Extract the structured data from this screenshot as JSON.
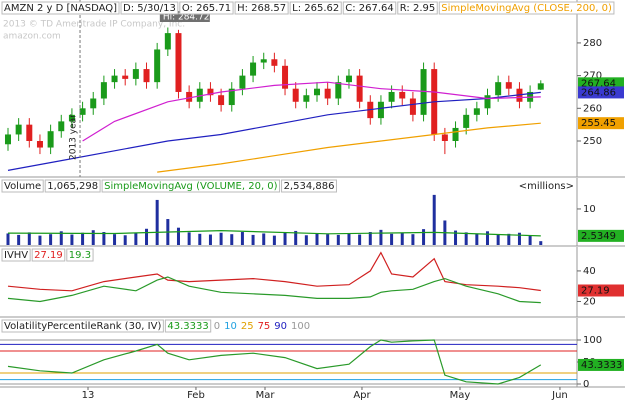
{
  "chart_data": [
    {
      "type": "candlestick",
      "header": [
        {
          "text": "AMZN 2 y D [NASDAQ]",
          "color": "#222"
        },
        {
          "text": "D: 5/30/13",
          "color": "#222"
        },
        {
          "text": "O: 265.71",
          "color": "#222"
        },
        {
          "text": "H: 268.57",
          "color": "#222"
        },
        {
          "text": "L: 265.62",
          "color": "#222"
        },
        {
          "text": "C: 267.64",
          "color": "#222"
        },
        {
          "text": "R: 2.95",
          "color": "#222"
        },
        {
          "text": "SimpleMovingAvg (CLOSE, 200, 0)",
          "color": "#f0a000"
        }
      ],
      "watermark": [
        "2013 © TD Ameritrade IP Company, Inc.",
        "amazon.com"
      ],
      "annotations": [
        {
          "text": "Hi: 284.72",
          "x": 15
        },
        {
          "text": "2013 year",
          "x": 6.76
        }
      ],
      "xlim": [
        -0.75,
        53.4
      ],
      "ylim": [
        239.6,
        291.6
      ],
      "yticks": [
        250,
        260,
        270,
        280
      ],
      "up_color": "#1a9a1a",
      "down_color": "#e02020",
      "open": [
        249,
        252,
        255,
        250,
        248,
        253,
        256,
        258,
        260,
        263,
        268,
        270,
        269,
        272,
        268,
        278,
        283,
        265,
        262,
        266,
        264,
        261,
        266,
        270,
        274,
        275,
        273,
        266,
        262,
        264,
        266,
        263,
        268,
        270,
        262,
        257,
        262,
        265,
        263,
        258,
        272,
        252,
        250,
        254,
        258,
        260,
        264,
        268,
        266,
        262,
        265.71
      ],
      "high": [
        254,
        257,
        257,
        252,
        255,
        258,
        260,
        262,
        265,
        270,
        272,
        272,
        274,
        274,
        280,
        284.72,
        284,
        267,
        268,
        268,
        266,
        268,
        272,
        276,
        277,
        277,
        275,
        268,
        266,
        268,
        268,
        270,
        272,
        272,
        264,
        264,
        267,
        267,
        265,
        274,
        274,
        254,
        256,
        260,
        262,
        266,
        270,
        270,
        268,
        267,
        268.57
      ],
      "low": [
        247,
        250,
        248,
        246,
        246,
        251,
        254,
        256,
        258,
        261,
        266,
        267,
        267,
        266,
        266,
        276,
        263,
        260,
        260,
        262,
        259,
        259,
        264,
        268,
        272,
        271,
        264,
        260,
        260,
        262,
        261,
        261,
        266,
        260,
        255,
        255,
        260,
        261,
        256,
        256,
        250,
        246,
        248,
        252,
        256,
        258,
        262,
        264,
        260,
        260,
        265.62
      ],
      "close": [
        252,
        255,
        250,
        248,
        253,
        256,
        258,
        260,
        263,
        268,
        270,
        269,
        272,
        268,
        278,
        283,
        265,
        262,
        266,
        264,
        261,
        266,
        270,
        274,
        275,
        273,
        266,
        262,
        264,
        266,
        263,
        268,
        270,
        262,
        257,
        262,
        265,
        263,
        258,
        272,
        252,
        250,
        254,
        258,
        260,
        264,
        268,
        266,
        262,
        265,
        267.64
      ],
      "overlays": [
        {
          "color": "#2020c0",
          "x": [
            0,
            5,
            10,
            15,
            20,
            25,
            30,
            35,
            40,
            45,
            50
          ],
          "values": [
            241,
            244,
            247,
            250,
            252,
            255,
            258,
            260,
            262,
            263,
            264.86
          ]
        },
        {
          "color": "#d020d0",
          "x": [
            7,
            10,
            15,
            20,
            25,
            30,
            35,
            40,
            45,
            50
          ],
          "values": [
            250,
            256,
            262,
            265,
            267,
            268,
            266,
            265,
            263,
            263.5
          ]
        },
        {
          "color": "#f0a000",
          "x": [
            14,
            20,
            25,
            30,
            35,
            40,
            45,
            50
          ],
          "values": [
            240.5,
            243,
            245.5,
            248,
            250,
            252,
            254,
            255.45
          ]
        }
      ],
      "price_labels": [
        {
          "value": 267.64,
          "color": "#22b022"
        },
        {
          "value": 264.86,
          "color": "#3a3ad0"
        },
        {
          "value": 255.45,
          "color": "#f0a000"
        }
      ]
    },
    {
      "type": "bar",
      "header": [
        {
          "text": "Volume",
          "color": "#222"
        },
        {
          "text": "1,065,298",
          "color": "#222"
        },
        {
          "text": "SimpleMovingAvg (VOLUME, 20, 0)",
          "color": "#1a9a1a"
        },
        {
          "text": "2,534,886",
          "color": "#222"
        }
      ],
      "units_label": "<millions>",
      "xlim": [
        -0.75,
        53.4
      ],
      "ylim": [
        0,
        14.7
      ],
      "yticks": [
        10
      ],
      "color": "#1f2f9f",
      "values": [
        3.2,
        2.8,
        3.5,
        2.6,
        3.0,
        3.8,
        2.9,
        3.4,
        4.1,
        3.6,
        3.0,
        2.7,
        3.3,
        4.5,
        12.5,
        7.2,
        4.8,
        3.5,
        3.1,
        2.9,
        3.4,
        3.0,
        3.6,
        2.8,
        3.2,
        2.6,
        3.5,
        3.9,
        2.7,
        3.1,
        3.0,
        2.8,
        3.3,
        2.9,
        3.6,
        4.2,
        3.1,
        3.4,
        3.0,
        4.4,
        13.9,
        6.8,
        4.0,
        3.5,
        3.2,
        3.8,
        2.9,
        3.1,
        3.4,
        2.6,
        1.065298
      ],
      "overlays": [
        {
          "color": "#1a9a1a",
          "x": [
            0,
            10,
            20,
            30,
            40,
            50
          ],
          "values": [
            3.3,
            3.2,
            4.0,
            3.1,
            3.5,
            2.5349
          ]
        }
      ],
      "price_labels": [
        {
          "value": 2.5349,
          "color": "#22b022"
        }
      ]
    },
    {
      "type": "line",
      "header": [
        {
          "text": "IVHV",
          "color": "#222"
        },
        {
          "text": "27.19",
          "color": "#e02020"
        },
        {
          "text": "19.3",
          "color": "#1a9a1a"
        }
      ],
      "xlim": [
        -0.75,
        53.4
      ],
      "ylim": [
        10.5,
        55
      ],
      "yticks": [
        20,
        40
      ],
      "overlays": [
        {
          "color": "#d02020",
          "x": [
            0,
            3,
            6,
            9,
            12,
            14,
            15,
            17,
            20,
            23,
            26,
            29,
            32,
            34,
            35,
            36,
            38,
            40,
            41,
            43,
            46,
            48,
            50
          ],
          "values": [
            30,
            28,
            27,
            33,
            36,
            38,
            34,
            33,
            34,
            35,
            33,
            30,
            31,
            40,
            52,
            38,
            36,
            48,
            33,
            31,
            30,
            29,
            27.19
          ]
        },
        {
          "color": "#2a9a2a",
          "x": [
            0,
            3,
            6,
            9,
            12,
            14,
            15,
            17,
            20,
            23,
            26,
            29,
            32,
            34,
            35,
            36,
            38,
            40,
            41,
            43,
            46,
            48,
            50
          ],
          "values": [
            22,
            20,
            24,
            30,
            27,
            34,
            36,
            30,
            26,
            25,
            24,
            22,
            22,
            23,
            26,
            27,
            28,
            33,
            35,
            30,
            25,
            20,
            19.3
          ]
        }
      ],
      "price_labels": [
        {
          "value": 27.19,
          "color": "#e03030"
        }
      ]
    },
    {
      "type": "line",
      "header": [
        {
          "text": "VolatilityPercentileRank (30, IV)",
          "color": "#222"
        },
        {
          "text": "43.3333",
          "color": "#1a9a1a"
        }
      ],
      "levels": [
        {
          "value": 0,
          "color": "#999999"
        },
        {
          "value": 10,
          "color": "#20a0e0"
        },
        {
          "value": 25,
          "color": "#e0a000"
        },
        {
          "value": 75,
          "color": "#e02020"
        },
        {
          "value": 90,
          "color": "#2020c0"
        },
        {
          "value": 100,
          "color": "#999999"
        }
      ],
      "xlim": [
        -0.75,
        53.4
      ],
      "ylim": [
        -6.8,
        147.7
      ],
      "yticks": [
        0,
        50,
        100
      ],
      "xticks": [
        {
          "value": 7.51,
          "label": "13"
        },
        {
          "value": 17.64,
          "label": "Feb"
        },
        {
          "value": 24.12,
          "label": "Mar"
        },
        {
          "value": 33.22,
          "label": "Apr"
        },
        {
          "value": 42.42,
          "label": "May"
        },
        {
          "value": 51.8,
          "label": "Jun"
        }
      ],
      "overlays": [
        {
          "color": "#2a9a2a",
          "x": [
            0,
            3,
            6,
            9,
            12,
            14,
            15,
            17,
            20,
            23,
            26,
            29,
            32,
            34,
            35,
            36,
            38,
            40,
            41,
            43,
            46,
            48,
            50
          ],
          "values": [
            40,
            30,
            25,
            55,
            75,
            90,
            70,
            55,
            65,
            70,
            60,
            35,
            45,
            85,
            100,
            95,
            98,
            100,
            20,
            5,
            0,
            15,
            43.3333
          ]
        }
      ],
      "price_labels": [
        {
          "value": 43.3333,
          "color": "#22b022"
        }
      ]
    }
  ]
}
